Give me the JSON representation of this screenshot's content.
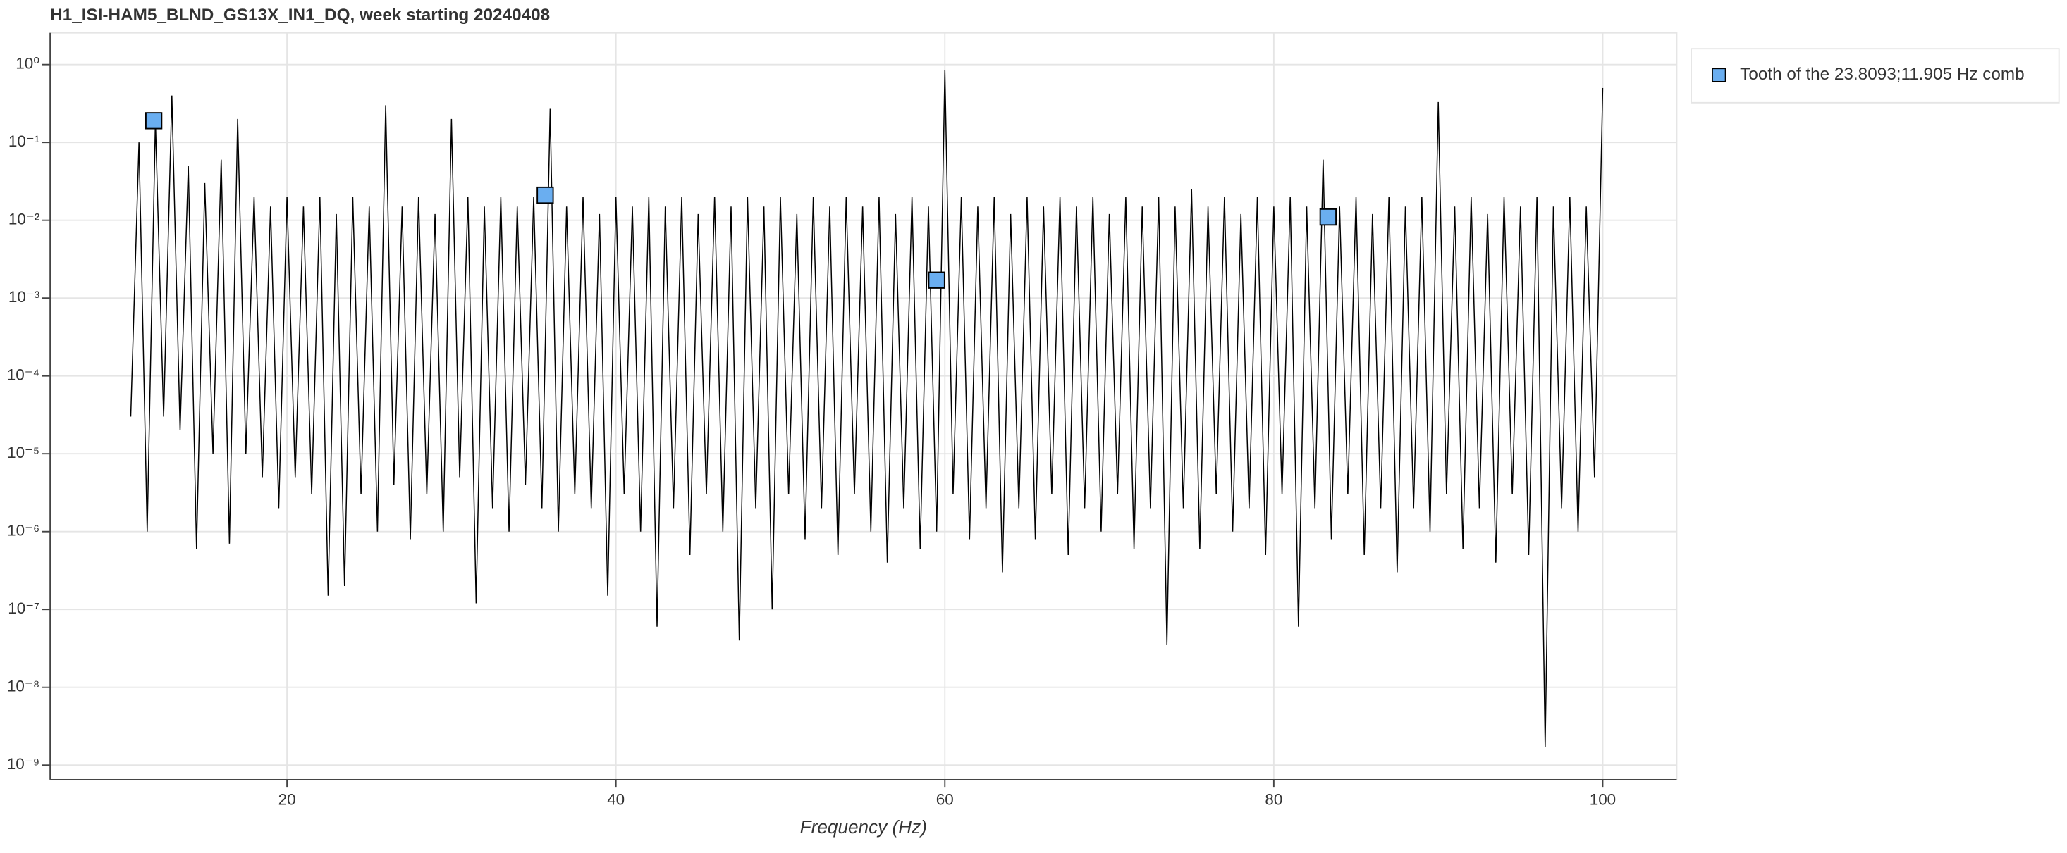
{
  "chart_data": {
    "type": "line",
    "title": "H1_ISI-HAM5_BLND_GS13X_IN1_DQ, week starting 20240408",
    "x_label": "Frequency (Hz)",
    "yscale": "log",
    "grid": true,
    "legend": "right",
    "xlim": [
      5.6,
      104.5
    ],
    "ylim": [
      6.5e-10,
      2.55
    ],
    "xticks": [
      20,
      40,
      60,
      80,
      100
    ],
    "yticks": [
      {
        "value": 1,
        "label": "10⁰"
      },
      {
        "value": 0.1,
        "label": "10⁻¹"
      },
      {
        "value": 0.01,
        "label": "10⁻²"
      },
      {
        "value": 0.001,
        "label": "10⁻³"
      },
      {
        "value": 0.0001,
        "label": "10⁻⁴"
      },
      {
        "value": 1e-05,
        "label": "10⁻⁵"
      },
      {
        "value": 1e-06,
        "label": "10⁻⁶"
      },
      {
        "value": 1e-07,
        "label": "10⁻⁷"
      },
      {
        "value": 1e-08,
        "label": "10⁻⁸"
      },
      {
        "value": 1e-09,
        "label": "10⁻⁹"
      }
    ],
    "series": [
      {
        "type": "line",
        "color": "#000000",
        "x": [
          10.5,
          11,
          11.5,
          12,
          12.5,
          13,
          13.5,
          14,
          14.5,
          15,
          15.5,
          16,
          16.5,
          17,
          17.5,
          18,
          18.5,
          19,
          19.5,
          20,
          20.5,
          21,
          21.5,
          22,
          22.5,
          23,
          23.5,
          24,
          24.5,
          25,
          25.5,
          26,
          26.5,
          27,
          27.5,
          28,
          28.5,
          29,
          29.5,
          30,
          30.5,
          31,
          31.5,
          32,
          32.5,
          33,
          33.5,
          34,
          34.5,
          35,
          35.5,
          36,
          36.5,
          37,
          37.5,
          38,
          38.5,
          39,
          39.5,
          40,
          40.5,
          41,
          41.5,
          42,
          42.5,
          43,
          43.5,
          44,
          44.5,
          45,
          45.5,
          46,
          46.5,
          47,
          47.5,
          48,
          48.5,
          49,
          49.5,
          50,
          50.5,
          51,
          51.5,
          52,
          52.5,
          53,
          53.5,
          54,
          54.5,
          55,
          55.5,
          56,
          56.5,
          57,
          57.5,
          58,
          58.5,
          59,
          59.5,
          60,
          60.5,
          61,
          61.5,
          62,
          62.5,
          63,
          63.5,
          64,
          64.5,
          65,
          65.5,
          66,
          66.5,
          67,
          67.5,
          68,
          68.5,
          69,
          69.5,
          70,
          70.5,
          71,
          71.5,
          72,
          72.5,
          73,
          73.5,
          74,
          74.5,
          75,
          75.5,
          76,
          76.5,
          77,
          77.5,
          78,
          78.5,
          79,
          79.5,
          80,
          80.5,
          81,
          81.5,
          82,
          82.5,
          83,
          83.5,
          84,
          84.5,
          85,
          85.5,
          86,
          86.5,
          87,
          87.5,
          88,
          88.5,
          89,
          89.5,
          90,
          90.5,
          91,
          91.5,
          92,
          92.5,
          93,
          93.5,
          94,
          94.5,
          95,
          95.5,
          96,
          96.5,
          97,
          97.5,
          98,
          98.5,
          99,
          99.5,
          100
        ],
        "values": [
          3e-05,
          0.1,
          1e-06,
          0.19,
          3e-05,
          0.4,
          2e-05,
          0.05,
          6e-07,
          0.03,
          1e-05,
          0.06,
          7e-07,
          0.2,
          1e-05,
          0.02,
          5e-06,
          0.015,
          2e-06,
          0.02,
          5e-06,
          0.015,
          3e-06,
          0.02,
          1.5e-07,
          0.012,
          2e-07,
          0.02,
          3e-06,
          0.015,
          1e-06,
          0.3,
          4e-06,
          0.015,
          8e-07,
          0.02,
          3e-06,
          0.012,
          1e-06,
          0.2,
          5e-06,
          0.02,
          1.2e-07,
          0.015,
          2e-06,
          0.02,
          1e-06,
          0.015,
          4e-06,
          0.02,
          2e-06,
          0.27,
          1e-06,
          0.015,
          3e-06,
          0.02,
          2e-06,
          0.012,
          1.5e-07,
          0.02,
          3e-06,
          0.015,
          1e-06,
          0.02,
          6e-08,
          0.015,
          2e-06,
          0.02,
          5e-07,
          0.012,
          3e-06,
          0.02,
          1e-06,
          0.015,
          4e-08,
          0.02,
          2e-06,
          0.015,
          1e-07,
          0.02,
          3e-06,
          0.012,
          8e-07,
          0.02,
          2e-06,
          0.015,
          5e-07,
          0.02,
          3e-06,
          0.015,
          1e-06,
          0.02,
          4e-07,
          0.012,
          2e-06,
          0.02,
          6e-07,
          0.015,
          1e-06,
          0.85,
          3e-06,
          0.02,
          8e-07,
          0.015,
          2e-06,
          0.02,
          3e-07,
          0.012,
          2e-06,
          0.02,
          8e-07,
          0.015,
          3e-06,
          0.02,
          5e-07,
          0.015,
          2e-06,
          0.02,
          1e-06,
          0.012,
          3e-06,
          0.02,
          6e-07,
          0.015,
          2e-06,
          0.02,
          3.5e-08,
          0.015,
          2e-06,
          0.025,
          6e-07,
          0.015,
          3e-06,
          0.02,
          1e-06,
          0.012,
          2e-06,
          0.02,
          5e-07,
          0.015,
          3e-06,
          0.02,
          6e-08,
          0.015,
          2e-06,
          0.06,
          8e-07,
          0.015,
          3e-06,
          0.02,
          5e-07,
          0.012,
          2e-06,
          0.02,
          3e-07,
          0.015,
          2e-06,
          0.02,
          1e-06,
          0.33,
          3e-06,
          0.015,
          6e-07,
          0.02,
          2e-06,
          0.012,
          4e-07,
          0.02,
          3e-06,
          0.015,
          5e-07,
          0.02,
          1.7e-09,
          0.015,
          2e-06,
          0.02,
          1e-06,
          0.015,
          5e-06,
          0.5
        ]
      },
      {
        "type": "scatter",
        "name": "Tooth of the 23.8093;11.905 Hz comb",
        "color": "#6aaef0",
        "x": [
          11.9,
          35.7,
          59.5,
          83.3
        ],
        "values": [
          0.19,
          0.021,
          0.0017,
          0.011
        ]
      }
    ]
  }
}
